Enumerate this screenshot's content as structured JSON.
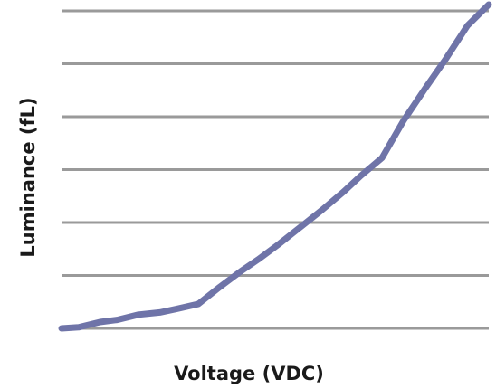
{
  "chart_data": {
    "type": "line",
    "xlabel": "Voltage (VDC)",
    "ylabel": "Luminance (fL)",
    "x_ticks_visible": false,
    "y_ticks_visible": false,
    "grid": "horizontal",
    "xlim": [
      0,
      100
    ],
    "ylim": [
      0,
      6
    ],
    "series": [
      {
        "color": "#6f74a8",
        "points": [
          {
            "x": 0,
            "y": 0.0
          },
          {
            "x": 4,
            "y": 0.02
          },
          {
            "x": 9,
            "y": 0.12
          },
          {
            "x": 13,
            "y": 0.16
          },
          {
            "x": 18,
            "y": 0.26
          },
          {
            "x": 23,
            "y": 0.3
          },
          {
            "x": 27,
            "y": 0.37
          },
          {
            "x": 32,
            "y": 0.46
          },
          {
            "x": 37,
            "y": 0.78
          },
          {
            "x": 42,
            "y": 1.08
          },
          {
            "x": 46,
            "y": 1.3
          },
          {
            "x": 51,
            "y": 1.6
          },
          {
            "x": 56,
            "y": 1.92
          },
          {
            "x": 61,
            "y": 2.24
          },
          {
            "x": 66,
            "y": 2.58
          },
          {
            "x": 70,
            "y": 2.88
          },
          {
            "x": 75,
            "y": 3.22
          },
          {
            "x": 80,
            "y": 3.92
          },
          {
            "x": 85,
            "y": 4.52
          },
          {
            "x": 90,
            "y": 5.1
          },
          {
            "x": 95,
            "y": 5.72
          },
          {
            "x": 100,
            "y": 6.12
          }
        ]
      }
    ]
  }
}
